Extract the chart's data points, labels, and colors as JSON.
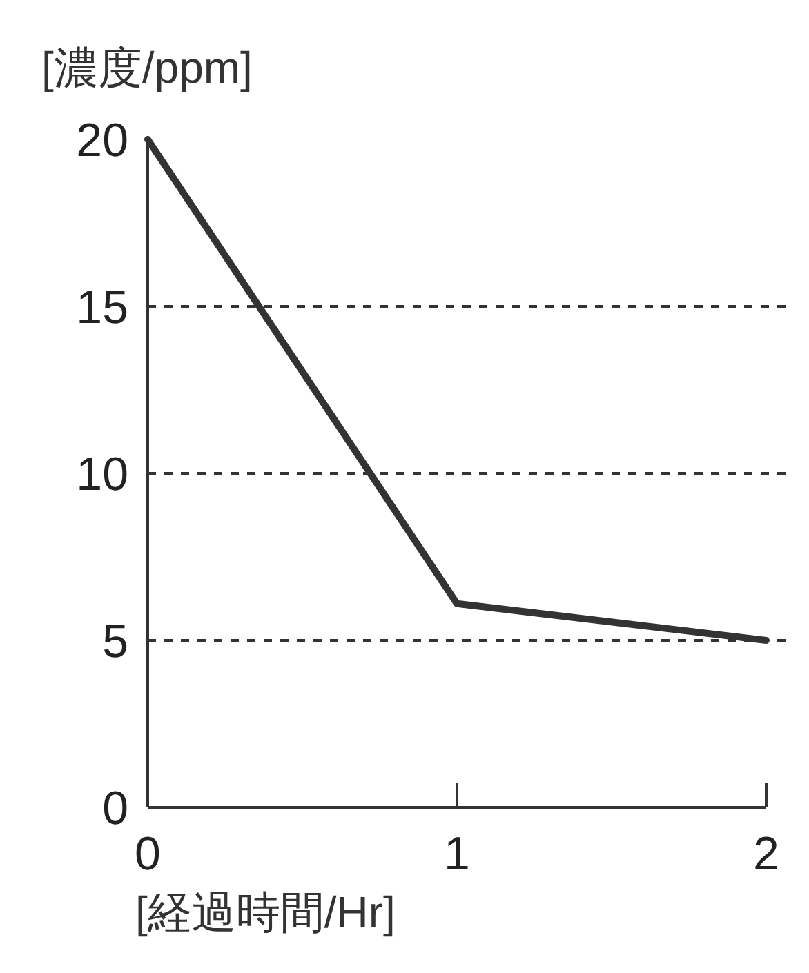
{
  "chart_data": {
    "type": "line",
    "ylabel": "[濃度/ppm]",
    "xlabel": "[経過時間/Hr]",
    "x": [
      0,
      1,
      2
    ],
    "series": [
      {
        "color": "#333333",
        "values": [
          20.0,
          6.1,
          5.0
        ]
      }
    ],
    "xlim": [
      0,
      2
    ],
    "xticks": [
      0,
      1,
      2
    ],
    "ylim": [
      0,
      20
    ],
    "yticks": [
      0,
      5,
      10,
      15,
      20
    ],
    "grid": "y",
    "marker": "none",
    "line_style": "solid"
  }
}
